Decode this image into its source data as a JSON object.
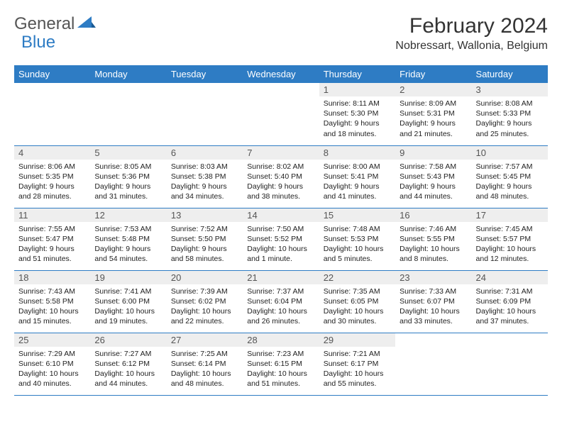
{
  "logo": {
    "general": "General",
    "blue": "Blue"
  },
  "header": {
    "title": "February 2024",
    "subtitle": "Nobressart, Wallonia, Belgium"
  },
  "colors": {
    "header_bg": "#2e7cc4",
    "header_fg": "#ffffff",
    "daynum_bg": "#eeeeee",
    "border": "#2e7cc4",
    "logo_gray": "#555555",
    "logo_blue": "#2e7cc4"
  },
  "daysOfWeek": [
    "Sunday",
    "Monday",
    "Tuesday",
    "Wednesday",
    "Thursday",
    "Friday",
    "Saturday"
  ],
  "grid": [
    [
      null,
      null,
      null,
      null,
      {
        "n": "1",
        "sr": "Sunrise: 8:11 AM",
        "ss": "Sunset: 5:30 PM",
        "dl1": "Daylight: 9 hours",
        "dl2": "and 18 minutes."
      },
      {
        "n": "2",
        "sr": "Sunrise: 8:09 AM",
        "ss": "Sunset: 5:31 PM",
        "dl1": "Daylight: 9 hours",
        "dl2": "and 21 minutes."
      },
      {
        "n": "3",
        "sr": "Sunrise: 8:08 AM",
        "ss": "Sunset: 5:33 PM",
        "dl1": "Daylight: 9 hours",
        "dl2": "and 25 minutes."
      }
    ],
    [
      {
        "n": "4",
        "sr": "Sunrise: 8:06 AM",
        "ss": "Sunset: 5:35 PM",
        "dl1": "Daylight: 9 hours",
        "dl2": "and 28 minutes."
      },
      {
        "n": "5",
        "sr": "Sunrise: 8:05 AM",
        "ss": "Sunset: 5:36 PM",
        "dl1": "Daylight: 9 hours",
        "dl2": "and 31 minutes."
      },
      {
        "n": "6",
        "sr": "Sunrise: 8:03 AM",
        "ss": "Sunset: 5:38 PM",
        "dl1": "Daylight: 9 hours",
        "dl2": "and 34 minutes."
      },
      {
        "n": "7",
        "sr": "Sunrise: 8:02 AM",
        "ss": "Sunset: 5:40 PM",
        "dl1": "Daylight: 9 hours",
        "dl2": "and 38 minutes."
      },
      {
        "n": "8",
        "sr": "Sunrise: 8:00 AM",
        "ss": "Sunset: 5:41 PM",
        "dl1": "Daylight: 9 hours",
        "dl2": "and 41 minutes."
      },
      {
        "n": "9",
        "sr": "Sunrise: 7:58 AM",
        "ss": "Sunset: 5:43 PM",
        "dl1": "Daylight: 9 hours",
        "dl2": "and 44 minutes."
      },
      {
        "n": "10",
        "sr": "Sunrise: 7:57 AM",
        "ss": "Sunset: 5:45 PM",
        "dl1": "Daylight: 9 hours",
        "dl2": "and 48 minutes."
      }
    ],
    [
      {
        "n": "11",
        "sr": "Sunrise: 7:55 AM",
        "ss": "Sunset: 5:47 PM",
        "dl1": "Daylight: 9 hours",
        "dl2": "and 51 minutes."
      },
      {
        "n": "12",
        "sr": "Sunrise: 7:53 AM",
        "ss": "Sunset: 5:48 PM",
        "dl1": "Daylight: 9 hours",
        "dl2": "and 54 minutes."
      },
      {
        "n": "13",
        "sr": "Sunrise: 7:52 AM",
        "ss": "Sunset: 5:50 PM",
        "dl1": "Daylight: 9 hours",
        "dl2": "and 58 minutes."
      },
      {
        "n": "14",
        "sr": "Sunrise: 7:50 AM",
        "ss": "Sunset: 5:52 PM",
        "dl1": "Daylight: 10 hours",
        "dl2": "and 1 minute."
      },
      {
        "n": "15",
        "sr": "Sunrise: 7:48 AM",
        "ss": "Sunset: 5:53 PM",
        "dl1": "Daylight: 10 hours",
        "dl2": "and 5 minutes."
      },
      {
        "n": "16",
        "sr": "Sunrise: 7:46 AM",
        "ss": "Sunset: 5:55 PM",
        "dl1": "Daylight: 10 hours",
        "dl2": "and 8 minutes."
      },
      {
        "n": "17",
        "sr": "Sunrise: 7:45 AM",
        "ss": "Sunset: 5:57 PM",
        "dl1": "Daylight: 10 hours",
        "dl2": "and 12 minutes."
      }
    ],
    [
      {
        "n": "18",
        "sr": "Sunrise: 7:43 AM",
        "ss": "Sunset: 5:58 PM",
        "dl1": "Daylight: 10 hours",
        "dl2": "and 15 minutes."
      },
      {
        "n": "19",
        "sr": "Sunrise: 7:41 AM",
        "ss": "Sunset: 6:00 PM",
        "dl1": "Daylight: 10 hours",
        "dl2": "and 19 minutes."
      },
      {
        "n": "20",
        "sr": "Sunrise: 7:39 AM",
        "ss": "Sunset: 6:02 PM",
        "dl1": "Daylight: 10 hours",
        "dl2": "and 22 minutes."
      },
      {
        "n": "21",
        "sr": "Sunrise: 7:37 AM",
        "ss": "Sunset: 6:04 PM",
        "dl1": "Daylight: 10 hours",
        "dl2": "and 26 minutes."
      },
      {
        "n": "22",
        "sr": "Sunrise: 7:35 AM",
        "ss": "Sunset: 6:05 PM",
        "dl1": "Daylight: 10 hours",
        "dl2": "and 30 minutes."
      },
      {
        "n": "23",
        "sr": "Sunrise: 7:33 AM",
        "ss": "Sunset: 6:07 PM",
        "dl1": "Daylight: 10 hours",
        "dl2": "and 33 minutes."
      },
      {
        "n": "24",
        "sr": "Sunrise: 7:31 AM",
        "ss": "Sunset: 6:09 PM",
        "dl1": "Daylight: 10 hours",
        "dl2": "and 37 minutes."
      }
    ],
    [
      {
        "n": "25",
        "sr": "Sunrise: 7:29 AM",
        "ss": "Sunset: 6:10 PM",
        "dl1": "Daylight: 10 hours",
        "dl2": "and 40 minutes."
      },
      {
        "n": "26",
        "sr": "Sunrise: 7:27 AM",
        "ss": "Sunset: 6:12 PM",
        "dl1": "Daylight: 10 hours",
        "dl2": "and 44 minutes."
      },
      {
        "n": "27",
        "sr": "Sunrise: 7:25 AM",
        "ss": "Sunset: 6:14 PM",
        "dl1": "Daylight: 10 hours",
        "dl2": "and 48 minutes."
      },
      {
        "n": "28",
        "sr": "Sunrise: 7:23 AM",
        "ss": "Sunset: 6:15 PM",
        "dl1": "Daylight: 10 hours",
        "dl2": "and 51 minutes."
      },
      {
        "n": "29",
        "sr": "Sunrise: 7:21 AM",
        "ss": "Sunset: 6:17 PM",
        "dl1": "Daylight: 10 hours",
        "dl2": "and 55 minutes."
      },
      null,
      null
    ]
  ]
}
